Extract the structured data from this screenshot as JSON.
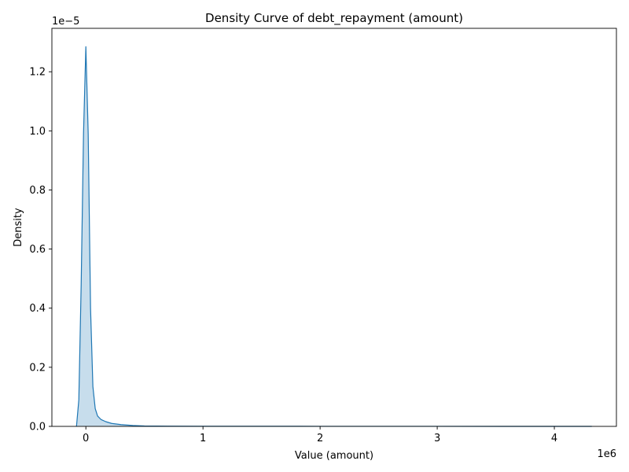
{
  "chart_data": {
    "type": "area",
    "title": "Density Curve of debt_repayment (amount)",
    "xlabel": "Value (amount)",
    "ylabel": "Density",
    "x_offset_text": "1e6",
    "y_offset_text": "1e−5",
    "xlim": [
      -290000,
      4530000
    ],
    "ylim": [
      0,
      1.347e-05
    ],
    "x_ticks": [
      0,
      1000000,
      2000000,
      3000000,
      4000000
    ],
    "x_tick_labels": [
      "0",
      "1",
      "2",
      "3",
      "4"
    ],
    "y_ticks": [
      0,
      2e-06,
      4e-06,
      6e-06,
      8e-06,
      1e-05,
      1.2e-05
    ],
    "y_tick_labels": [
      "0.0",
      "0.2",
      "0.4",
      "0.6",
      "0.8",
      "1.0",
      "1.2"
    ],
    "grid": false,
    "legend": "none",
    "series": [
      {
        "color": "#1f77b4",
        "fill_opacity": 0.25,
        "points": [
          [
            -80000,
            0
          ],
          [
            -60000,
            9e-07
          ],
          [
            -40000,
            4.8e-06
          ],
          [
            -20000,
            9.9e-06
          ],
          [
            0,
            1.285e-05
          ],
          [
            20000,
            9.9e-06
          ],
          [
            40000,
            4e-06
          ],
          [
            60000,
            1.35e-06
          ],
          [
            80000,
            6e-07
          ],
          [
            100000,
            3.5e-07
          ],
          [
            130000,
            2.3e-07
          ],
          [
            170000,
            1.6e-07
          ],
          [
            220000,
            1e-07
          ],
          [
            300000,
            6e-08
          ],
          [
            400000,
            3e-08
          ],
          [
            500000,
            1.5e-08
          ],
          [
            700000,
            8e-09
          ],
          [
            1000000,
            4e-09
          ],
          [
            2000000,
            2e-09
          ],
          [
            3000000,
            1e-09
          ],
          [
            4320000,
            0
          ]
        ]
      }
    ]
  }
}
